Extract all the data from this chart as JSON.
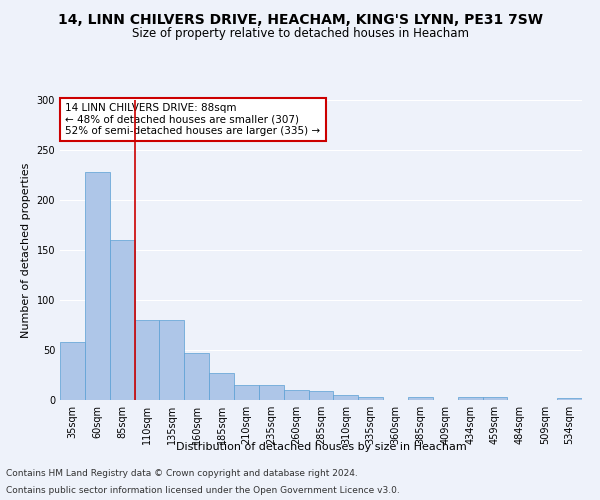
{
  "title": "14, LINN CHILVERS DRIVE, HEACHAM, KING'S LYNN, PE31 7SW",
  "subtitle": "Size of property relative to detached houses in Heacham",
  "xlabel": "Distribution of detached houses by size in Heacham",
  "ylabel": "Number of detached properties",
  "categories": [
    "35sqm",
    "60sqm",
    "85sqm",
    "110sqm",
    "135sqm",
    "160sqm",
    "185sqm",
    "210sqm",
    "235sqm",
    "260sqm",
    "285sqm",
    "310sqm",
    "335sqm",
    "360sqm",
    "385sqm",
    "409sqm",
    "434sqm",
    "459sqm",
    "484sqm",
    "509sqm",
    "534sqm"
  ],
  "values": [
    58,
    228,
    160,
    80,
    80,
    47,
    27,
    15,
    15,
    10,
    9,
    5,
    3,
    0,
    3,
    0,
    3,
    3,
    0,
    0,
    2
  ],
  "bar_color": "#aec6e8",
  "bar_edge_color": "#5a9fd4",
  "red_line_x": 2.5,
  "annotation_text": "14 LINN CHILVERS DRIVE: 88sqm\n← 48% of detached houses are smaller (307)\n52% of semi-detached houses are larger (335) →",
  "annotation_box_color": "#ffffff",
  "annotation_box_edge_color": "#cc0000",
  "ylim": [
    0,
    300
  ],
  "yticks": [
    0,
    50,
    100,
    150,
    200,
    250,
    300
  ],
  "footer_line1": "Contains HM Land Registry data © Crown copyright and database right 2024.",
  "footer_line2": "Contains public sector information licensed under the Open Government Licence v3.0.",
  "background_color": "#eef2fa",
  "grid_color": "#ffffff",
  "title_fontsize": 10,
  "subtitle_fontsize": 8.5,
  "xlabel_fontsize": 8,
  "ylabel_fontsize": 8,
  "tick_fontsize": 7,
  "annotation_fontsize": 7.5,
  "footer_fontsize": 6.5
}
